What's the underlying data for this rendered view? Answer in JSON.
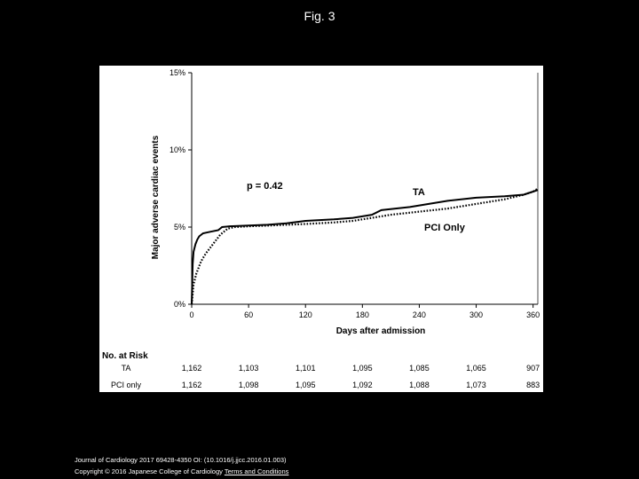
{
  "page": {
    "title": "Fig. 3"
  },
  "footer": {
    "citation": "Journal of Cardiology 2017 69428-4350 OI: (10.1016/j.jjcc.2016.01.003)",
    "copyright": "Copyright © 2016 Japanese College of Cardiology",
    "link_label": "Terms and Conditions"
  },
  "chart_data": {
    "type": "line",
    "title": "",
    "xlabel": "Days after admission",
    "ylabel": "Major adverse cardiac events",
    "xlim": [
      0,
      365
    ],
    "ylim": [
      0,
      15
    ],
    "x_ticks": [
      "0",
      "60",
      "120",
      "180",
      "240",
      "300",
      "360"
    ],
    "x_tick_values": [
      0,
      60,
      120,
      180,
      240,
      300,
      360
    ],
    "y_ticks": [
      "0%",
      "5%",
      "10%",
      "15%"
    ],
    "y_tick_values": [
      0,
      5,
      10,
      15
    ],
    "annotation": "p = 0.42",
    "series": [
      {
        "name": "TA",
        "line_style": "solid",
        "color": "#000000",
        "x": [
          0,
          1,
          2,
          4,
          6,
          8,
          12,
          20,
          28,
          32,
          40,
          60,
          80,
          100,
          120,
          150,
          170,
          190,
          200,
          230,
          250,
          270,
          300,
          330,
          350,
          360,
          365
        ],
        "y": [
          0,
          2.6,
          3.4,
          3.9,
          4.2,
          4.4,
          4.6,
          4.7,
          4.8,
          5.0,
          5.05,
          5.1,
          5.15,
          5.25,
          5.4,
          5.5,
          5.6,
          5.8,
          6.1,
          6.3,
          6.5,
          6.7,
          6.9,
          7.0,
          7.1,
          7.3,
          7.4
        ]
      },
      {
        "name": "PCI Only",
        "line_style": "dotted",
        "color": "#000000",
        "x": [
          0,
          2,
          5,
          10,
          15,
          20,
          25,
          30,
          38,
          45,
          60,
          80,
          100,
          120,
          150,
          170,
          190,
          210,
          240,
          270,
          300,
          330,
          350,
          360,
          365
        ],
        "y": [
          0,
          1.3,
          2.0,
          2.8,
          3.3,
          3.7,
          4.1,
          4.5,
          4.9,
          5.0,
          5.05,
          5.1,
          5.15,
          5.2,
          5.3,
          5.4,
          5.6,
          5.8,
          6.0,
          6.2,
          6.5,
          6.8,
          7.1,
          7.3,
          7.5
        ]
      }
    ],
    "at_risk": {
      "title": "No. at Risk",
      "rows": [
        {
          "label": "TA",
          "values": [
            "1,162",
            "1,103",
            "1,101",
            "1,095",
            "1,085",
            "1,065",
            "907"
          ]
        },
        {
          "label": "PCI only",
          "values": [
            "1,162",
            "1,098",
            "1,095",
            "1,092",
            "1,088",
            "1,073",
            "883"
          ]
        }
      ]
    },
    "grid": false,
    "legend": "labels beside lines"
  }
}
